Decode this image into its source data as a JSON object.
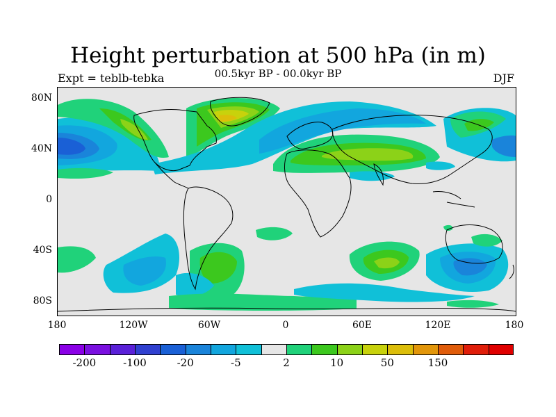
{
  "figure": {
    "title": "Height perturbation at 500 hPa (in m)",
    "subtitle": "00.5kyr BP - 00.0kyr BP",
    "left_note": "Expt = teblb-tebka",
    "right_note": "DJF"
  },
  "map": {
    "ocean_land_fill": "#e6e6e6",
    "lat_labels": [
      "80N",
      "40N",
      "0",
      "40S",
      "80S"
    ],
    "lon_labels": [
      "180",
      "120W",
      "60W",
      "0",
      "60E",
      "120E",
      "180"
    ],
    "anomaly_regions": [
      {
        "name": "North Pacific negative center",
        "lon": -170,
        "lat": 42,
        "level": "-20"
      },
      {
        "name": "Canada/Greenland positive",
        "lon": -45,
        "lat": 58,
        "level": "50"
      },
      {
        "name": "Eurasia positive band",
        "lon": 70,
        "lat": 42,
        "level": "10"
      },
      {
        "name": "East Asia positive",
        "lon": 135,
        "lat": 55,
        "level": "10"
      },
      {
        "name": "South Atlantic positive",
        "lon": -60,
        "lat": -50,
        "level": "10"
      },
      {
        "name": "South Indian positive",
        "lon": 75,
        "lat": -50,
        "level": "10"
      },
      {
        "name": "Australia-south negative",
        "lon": 135,
        "lat": -55,
        "level": "-5"
      },
      {
        "name": "South Pacific negative",
        "lon": -120,
        "lat": -55,
        "level": "-5"
      }
    ]
  },
  "colorbar": {
    "colors": [
      "#8a00e6",
      "#7a10e0",
      "#5a20d8",
      "#3040d0",
      "#1a60d6",
      "#1a84da",
      "#12a6de",
      "#10c0d8",
      "#e6e6e6",
      "#20d27a",
      "#3cc81e",
      "#8cd218",
      "#c8d20c",
      "#dcbe0a",
      "#e2960a",
      "#e05c0a",
      "#e01e0a",
      "#e00000"
    ],
    "labels": [
      "-200",
      "-100",
      "-20",
      "-5",
      "2",
      "10",
      "50",
      "150"
    ]
  }
}
